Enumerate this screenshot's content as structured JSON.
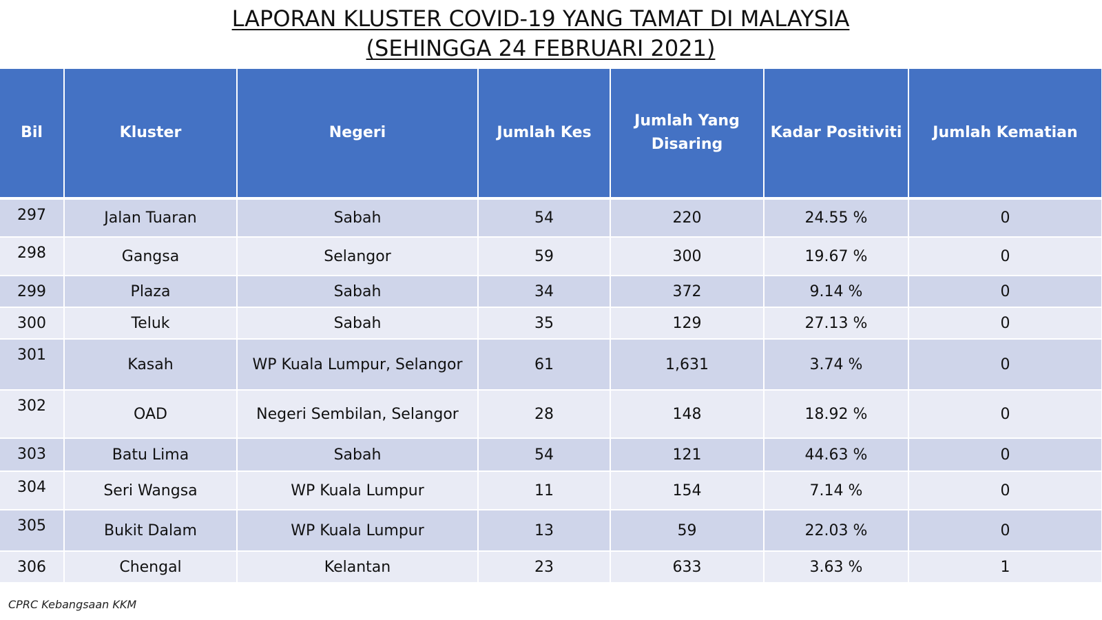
{
  "title": {
    "line1": "LAPORAN KLUSTER COVID-19 YANG TAMAT DI MALAYSIA",
    "line2": "(SEHINGGA 24 FEBRUARI 2021)"
  },
  "table": {
    "headers": [
      "Bil",
      "Kluster",
      "Negeri",
      "Jumlah Kes",
      "Jumlah Yang Disaring",
      "Kadar Positiviti",
      "Jumlah Kematian"
    ],
    "rows": [
      [
        "297",
        "Jalan Tuaran",
        "Sabah",
        "54",
        "220",
        "24.55 %",
        "0"
      ],
      [
        "298",
        "Gangsa",
        "Selangor",
        "59",
        "300",
        "19.67 %",
        "0"
      ],
      [
        "299",
        "Plaza",
        "Sabah",
        "34",
        "372",
        "9.14 %",
        "0"
      ],
      [
        "300",
        "Teluk",
        "Sabah",
        "35",
        "129",
        "27.13 %",
        "0"
      ],
      [
        "301",
        "Kasah",
        "WP Kuala Lumpur, Selangor",
        "61",
        "1,631",
        "3.74 %",
        "0"
      ],
      [
        "302",
        "OAD",
        "Negeri Sembilan, Selangor",
        "28",
        "148",
        "18.92 %",
        "0"
      ],
      [
        "303",
        "Batu Lima",
        "Sabah",
        "54",
        "121",
        "44.63 %",
        "0"
      ],
      [
        "304",
        "Seri Wangsa",
        "WP Kuala Lumpur",
        "11",
        "154",
        "7.14 %",
        "0"
      ],
      [
        "305",
        "Bukit Dalam",
        "WP Kuala Lumpur",
        "13",
        "59",
        "22.03 %",
        "0"
      ],
      [
        "306",
        "Chengal",
        "Kelantan",
        "23",
        "633",
        "3.63 %",
        "1"
      ]
    ]
  },
  "footer": "CPRC Kebangsaan KKM",
  "colors": {
    "header_bg": "#4472c4",
    "row_odd_bg": "#cfd5ea",
    "row_even_bg": "#e9ebf5"
  }
}
